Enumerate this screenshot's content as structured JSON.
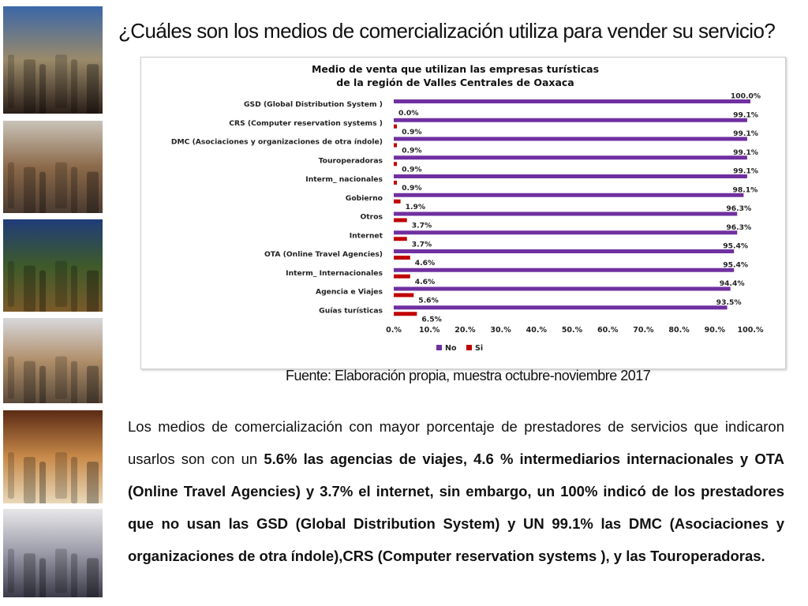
{
  "slide": {
    "title": "¿Cuáles son los medios de comercialización utiliza para vender su servicio?",
    "source": "Fuente: Elaboración propia, muestra octubre-noviembre 2017",
    "summary": {
      "p1": "Los medios de comercialización con mayor porcentaje de prestadores de servicios que indicaron usarlos son con un ",
      "b1": "5.6% las agencias de viajes, 4.6 % intermediarios internacionales y OTA (Online Travel Agencies) y 3.7% el internet, sin embargo, un 100% indicó de los prestadores que no usan las GSD (Global Distribution System)   y UN 99.1% las DMC  (Asociaciones y organizaciones de otra índole),CRS (Computer reservation systems ), y las Touroperadoras."
    }
  },
  "chart_data": {
    "type": "bar",
    "orientation": "horizontal",
    "title": "Medio de venta que utilizan las empresas turísticas\nde la región de Valles Centrales de Oaxaca",
    "categories": [
      "GSD (Global Distribution System )",
      "CRS (Computer reservation systems )",
      "DMC  (Asociaciones y organizaciones de otra índole)",
      "Touroperadoras",
      "Interm_ nacionales",
      "Gobierno",
      "Otros",
      "Internet",
      "OTA (Online Travel Agencies)",
      "Interm_ Internacionales",
      "Agencia e Viajes",
      "Guías turísticas"
    ],
    "series": [
      {
        "name": "No",
        "color": "#7030a0",
        "values": [
          100.0,
          99.1,
          99.1,
          99.1,
          99.1,
          98.1,
          96.3,
          96.3,
          95.4,
          95.4,
          94.4,
          93.5
        ],
        "labels": [
          "100.0%",
          "99.1%",
          "99.1%",
          "99.1%",
          "99.1%",
          "98.1%",
          "96.3%",
          "96.3%",
          "95.4%",
          "95.4%",
          "94.4%",
          "93.5%"
        ]
      },
      {
        "name": "Si",
        "color": "#c00000",
        "values": [
          0.0,
          0.9,
          0.9,
          0.9,
          0.9,
          1.9,
          3.7,
          3.7,
          4.6,
          4.6,
          5.6,
          6.5
        ],
        "labels": [
          "0.0%",
          "0.9%",
          "0.9%",
          "0.9%",
          "0.9%",
          "1.9%",
          "3.7%",
          "3.7%",
          "4.6%",
          "4.6%",
          "5.6%",
          "6.5%"
        ]
      }
    ],
    "xlim": [
      0,
      100
    ],
    "xticks": [
      "0.%",
      "10.%",
      "20.%",
      "30.%",
      "40.%",
      "50.%",
      "60.%",
      "70.%",
      "80.%",
      "90.%",
      "100.%"
    ],
    "legend": "bottom",
    "grid": false
  },
  "photos": [
    {
      "name": "photo-tourists-rooftop",
      "colors": [
        "#3b67a8",
        "#9a8a6a",
        "#2a1e18"
      ]
    },
    {
      "name": "photo-pedestrian-street",
      "colors": [
        "#c9c3b8",
        "#8c6a4a",
        "#4a3a30"
      ]
    },
    {
      "name": "photo-garden-terrace",
      "colors": [
        "#1f3c7a",
        "#3e5a2a",
        "#7a5a2a"
      ]
    },
    {
      "name": "photo-church-plaza",
      "colors": [
        "#d8d8dc",
        "#b08f6a",
        "#5a4a3a"
      ]
    },
    {
      "name": "photo-hotel-room",
      "colors": [
        "#5a2a14",
        "#c88a4a",
        "#e8d8b8"
      ]
    },
    {
      "name": "photo-airport-crowd",
      "colors": [
        "#e8e8ea",
        "#9a9aa8",
        "#3a3a48"
      ]
    }
  ]
}
